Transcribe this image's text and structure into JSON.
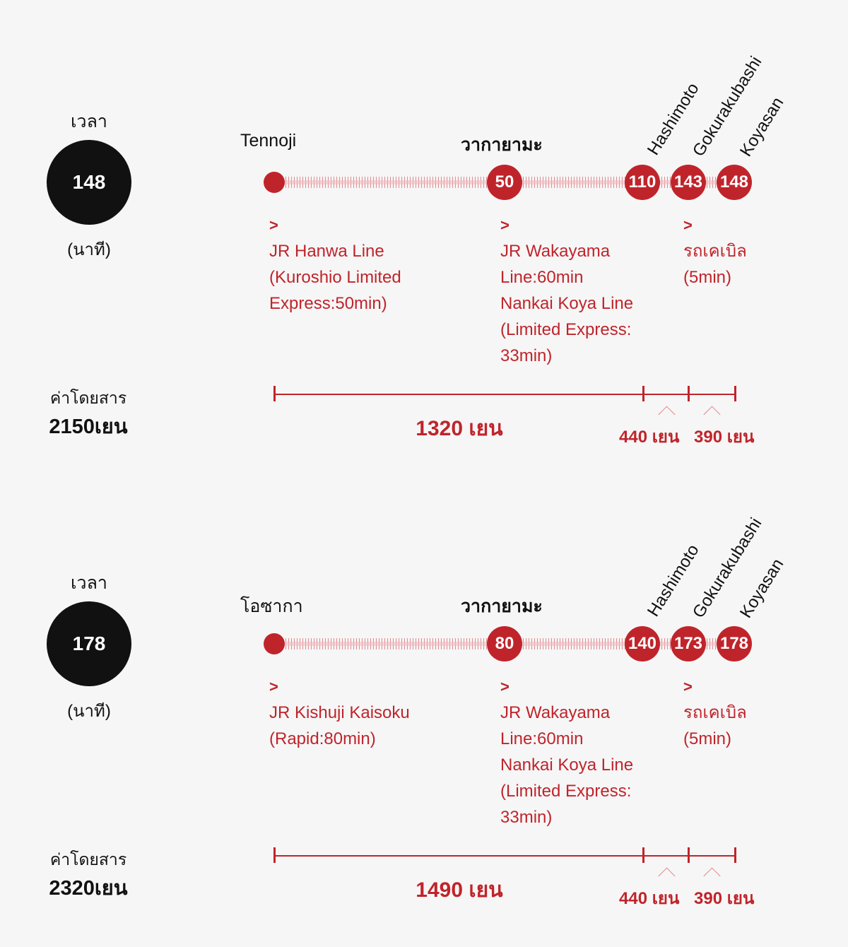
{
  "routes": [
    {
      "time_label": "เวลา",
      "total_minutes": "148",
      "time_unit": "(นาที)",
      "start_station": "Tennoji",
      "mid_station": "วากายามะ",
      "stations_rotated": [
        "Hashimoto",
        "Gokurakubashi",
        "Koyasan"
      ],
      "nodes": [
        "50",
        "110",
        "143",
        "148"
      ],
      "segments": [
        {
          "arrow": ">",
          "lines": [
            "JR Hanwa Line",
            "(Kuroshio Limited",
            "Express:50min)"
          ]
        },
        {
          "arrow": ">",
          "lines": [
            "JR Wakayama",
            "Line:60min",
            "Nankai Koya Line",
            "(Limited Express:",
            "33min)"
          ]
        },
        {
          "arrow": ">",
          "lines": [
            "รถเคเบิล",
            "(5min)"
          ]
        }
      ],
      "fare_label": "ค่าโดยสาร",
      "fare_total": "2150เยน",
      "fares": [
        "1320 เยน",
        "440 เยน",
        "390 เยน"
      ]
    },
    {
      "time_label": "เวลา",
      "total_minutes": "178",
      "time_unit": "(นาที)",
      "start_station": "โอซากา",
      "mid_station": "วากายามะ",
      "stations_rotated": [
        "Hashimoto",
        "Gokurakubashi",
        "Koyasan"
      ],
      "nodes": [
        "80",
        "140",
        "173",
        "178"
      ],
      "segments": [
        {
          "arrow": ">",
          "lines": [
            "JR Kishuji Kaisoku",
            "(Rapid:80min)"
          ]
        },
        {
          "arrow": ">",
          "lines": [
            "JR Wakayama",
            "Line:60min",
            "Nankai Koya Line",
            "(Limited Express:",
            "33min)"
          ]
        },
        {
          "arrow": ">",
          "lines": [
            "รถเคเบิล",
            "(5min)"
          ]
        }
      ],
      "fare_label": "ค่าโดยสาร",
      "fare_total": "2320เยน",
      "fares": [
        "1490 เยน",
        "440 เยน",
        "390 เยน"
      ]
    }
  ],
  "colors": {
    "accent": "#c0242b",
    "circle": "#111111",
    "background": "#f6f6f6"
  }
}
